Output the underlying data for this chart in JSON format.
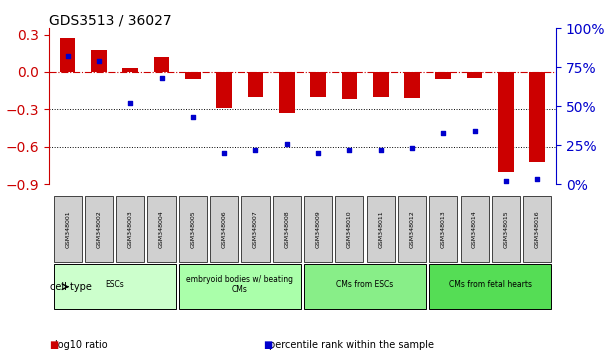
{
  "title": "GDS3513 / 36027",
  "samples": [
    "GSM348001",
    "GSM348002",
    "GSM348003",
    "GSM348004",
    "GSM348005",
    "GSM348006",
    "GSM348007",
    "GSM348008",
    "GSM348009",
    "GSM348010",
    "GSM348011",
    "GSM348012",
    "GSM348013",
    "GSM348014",
    "GSM348015",
    "GSM348016"
  ],
  "log10_ratio": [
    0.27,
    0.18,
    0.03,
    0.12,
    -0.06,
    -0.29,
    -0.2,
    -0.33,
    -0.2,
    -0.22,
    -0.2,
    -0.21,
    -0.06,
    -0.05,
    -0.8,
    -0.72
  ],
  "percentile_rank": [
    82,
    79,
    52,
    68,
    43,
    20,
    22,
    26,
    20,
    22,
    22,
    23,
    33,
    34,
    2,
    3
  ],
  "bar_color": "#cc0000",
  "dot_color": "#0000cc",
  "ref_line_color": "#cc0000",
  "ref_line_style": "-.",
  "dotted_line_color": "#000000",
  "ylim_left": [
    -0.9,
    0.35
  ],
  "ylim_right": [
    0,
    100
  ],
  "yticks_left": [
    -0.9,
    -0.6,
    -0.3,
    0.0,
    0.3
  ],
  "yticks_right": [
    0,
    25,
    50,
    75,
    100
  ],
  "ytick_labels_right": [
    "0%",
    "25%",
    "50%",
    "75%",
    "100%"
  ],
  "cell_groups": [
    {
      "label": "ESCs",
      "start": 0,
      "end": 3,
      "color": "#ccffcc"
    },
    {
      "label": "embryoid bodies w/ beating\nCMs",
      "start": 4,
      "end": 7,
      "color": "#aaffaa"
    },
    {
      "label": "CMs from ESCs",
      "start": 8,
      "end": 11,
      "color": "#88ee88"
    },
    {
      "label": "CMs from fetal hearts",
      "start": 12,
      "end": 15,
      "color": "#55dd55"
    }
  ],
  "legend_items": [
    {
      "label": "log10 ratio",
      "color": "#cc0000",
      "marker": "s"
    },
    {
      "label": "percentile rank within the sample",
      "color": "#0000cc",
      "marker": "s"
    }
  ],
  "cell_type_label": "cell type"
}
